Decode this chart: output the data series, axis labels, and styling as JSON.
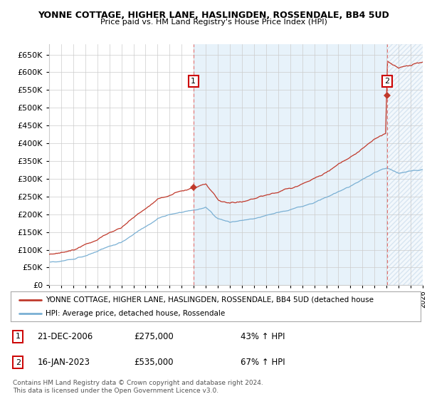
{
  "title": "YONNE COTTAGE, HIGHER LANE, HASLINGDEN, ROSSENDALE, BB4 5UD",
  "subtitle": "Price paid vs. HM Land Registry's House Price Index (HPI)",
  "ylim": [
    0,
    680000
  ],
  "yticks": [
    0,
    50000,
    100000,
    150000,
    200000,
    250000,
    300000,
    350000,
    400000,
    450000,
    500000,
    550000,
    600000,
    650000
  ],
  "hpi_color": "#7ab0d4",
  "price_color": "#c0392b",
  "vline_color": "#e07070",
  "shade_color": "#ddeeff",
  "background_color": "#ffffff",
  "grid_color": "#cccccc",
  "legend_label_price": "YONNE COTTAGE, HIGHER LANE, HASLINGDEN, ROSSENDALE, BB4 5UD (detached house",
  "legend_label_hpi": "HPI: Average price, detached house, Rossendale",
  "sale1_year": 2006.97,
  "sale1_price": 275000,
  "sale2_year": 2023.04,
  "sale2_price": 535000,
  "footer": "Contains HM Land Registry data © Crown copyright and database right 2024.\nThis data is licensed under the Open Government Licence v3.0.",
  "box1_label": "1",
  "box2_label": "2",
  "sale1_date": "21-DEC-2006",
  "sale2_date": "16-JAN-2023",
  "sale1_pct": "43%",
  "sale2_pct": "67%"
}
